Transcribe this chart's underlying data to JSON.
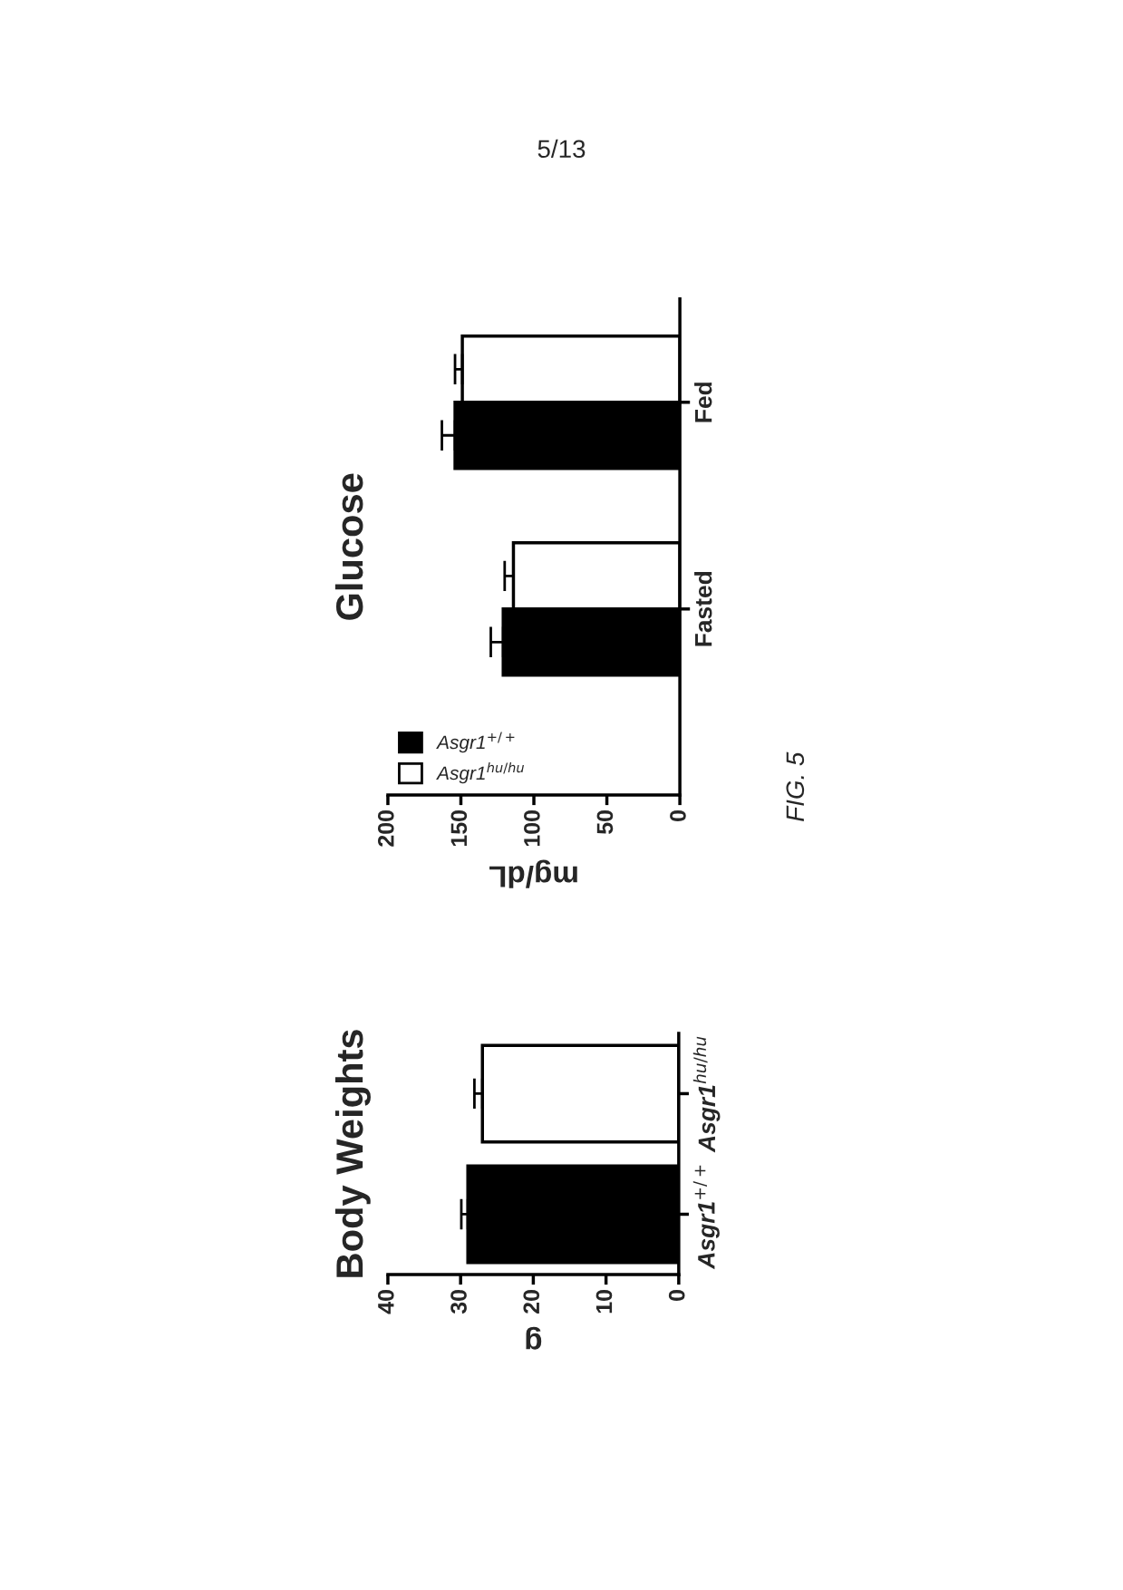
{
  "chart_data": [
    {
      "type": "bar",
      "orientation": "horizontal",
      "title": "Body Weights",
      "xlabel": "g",
      "categories": [
        "Asgr1$^{hu/hu}$",
        "Asgr1$^{+/+}$"
      ],
      "values": [
        27,
        29
      ],
      "colors": [
        "#ffffff",
        "#000000"
      ],
      "errors": [
        [
          27,
          28.1
        ],
        [
          29,
          29.9
        ]
      ],
      "xlim": [
        40,
        0
      ],
      "xticks": [
        40,
        30,
        20,
        10,
        0
      ],
      "grid": false,
      "legend": false
    },
    {
      "type": "bar",
      "orientation": "horizontal",
      "title": "Glucose",
      "xlabel": "mg/dL",
      "categories": [
        "Fed",
        "Fasted"
      ],
      "series": [
        {
          "name": "Asgr1$^{+/+}$",
          "color": "#000000",
          "values": [
            154,
            121
          ],
          "errors": [
            [
              154,
              163
            ],
            [
              121,
              129.5
            ]
          ]
        },
        {
          "name": "Asgr1$^{hu/hu}$",
          "color": "#ffffff",
          "values": [
            149,
            114
          ],
          "errors": [
            [
              149,
              154
            ],
            [
              114,
              120
            ]
          ]
        }
      ],
      "xlim": [
        200,
        0
      ],
      "xticks": [
        200,
        150,
        100,
        50,
        0
      ],
      "grid": false,
      "legend": "bottom left",
      "annotations": [
        "5/13",
        "FIG. 5"
      ]
    }
  ]
}
